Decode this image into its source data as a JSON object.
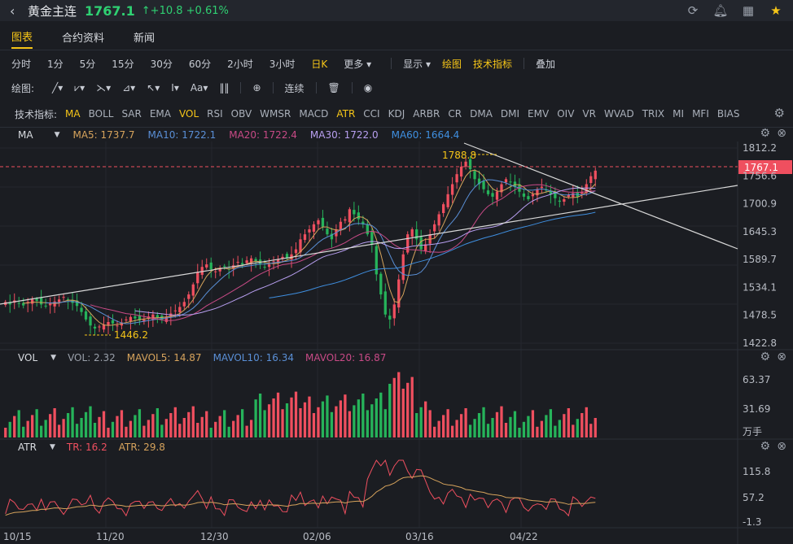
{
  "header": {
    "back_icon": "chevron-left-icon",
    "title": "黄金主连",
    "price": "1767.1",
    "arrow": "↑",
    "change": "+10.8",
    "change_pct": "+0.61%"
  },
  "tabs": [
    "图表",
    "合约资料",
    "新闻"
  ],
  "periods": [
    "分时",
    "1分",
    "5分",
    "15分",
    "30分",
    "60分",
    "2小时",
    "3小时",
    "日K",
    "更多"
  ],
  "toolbar": {
    "display": "显示",
    "draw": "绘图",
    "tech": "技术指标",
    "overlay": "叠加"
  },
  "draw_bar": {
    "label": "绘图:",
    "connect": "连续"
  },
  "indicators": {
    "label": "技术指标:",
    "items": [
      "MA",
      "BOLL",
      "SAR",
      "EMA",
      "VOL",
      "RSI",
      "OBV",
      "WMSR",
      "MACD",
      "ATR",
      "CCI",
      "KDJ",
      "ARBR",
      "CR",
      "DMA",
      "DMI",
      "EMV",
      "OIV",
      "VR",
      "WVAD",
      "TRIX",
      "MI",
      "MFI",
      "BIAS"
    ],
    "active": [
      "MA",
      "VOL",
      "ATR"
    ]
  },
  "ma_legend": {
    "name": "MA",
    "ma5": "MA5: 1737.7",
    "ma10": "MA10: 1722.1",
    "ma20": "MA20: 1722.4",
    "ma30": "MA30: 1722.0",
    "ma60": "MA60: 1664.4"
  },
  "vol_legend": {
    "name": "VOL",
    "vol": "VOL: 2.32",
    "mavol5": "MAVOL5: 14.87",
    "mavol10": "MAVOL10: 16.34",
    "mavol20": "MAVOL20: 16.87"
  },
  "atr_legend": {
    "name": "ATR",
    "tr": "TR: 16.2",
    "atr": "ATR: 29.8"
  },
  "price_axis": [
    "1812.2",
    "1756.6",
    "1700.9",
    "1645.3",
    "1589.7",
    "1534.1",
    "1478.5",
    "1422.8"
  ],
  "last_price_tag": "1767.1",
  "vol_axis": [
    "63.37",
    "31.69",
    "万手"
  ],
  "atr_axis": [
    "115.8",
    "57.2",
    "-1.3"
  ],
  "annotations": {
    "high": "1788.8",
    "low": "1446.2"
  },
  "x_axis": [
    "10/15",
    "11/20",
    "12/30",
    "02/06",
    "03/16",
    "04/22"
  ],
  "colors": {
    "up": "#ef4f5f",
    "down": "#26b35a",
    "accent": "#f5c518",
    "ma5": "#d6a35c",
    "ma10": "#5a8fd6",
    "ma20": "#c84a86",
    "ma30": "#b89ff0",
    "ma60": "#3f8fe0"
  },
  "chart_data": {
    "type": "candlestick",
    "title": "",
    "ylim": [
      1422.8,
      1812.2
    ],
    "closes": [
      1505,
      1500,
      1508,
      1503,
      1498,
      1505,
      1510,
      1507,
      1500,
      1496,
      1502,
      1506,
      1510,
      1515,
      1509,
      1503,
      1497,
      1485,
      1470,
      1458,
      1452,
      1456,
      1460,
      1465,
      1462,
      1458,
      1464,
      1470,
      1475,
      1472,
      1468,
      1470,
      1476,
      1480,
      1474,
      1470,
      1475,
      1482,
      1488,
      1495,
      1505,
      1520,
      1540,
      1565,
      1575,
      1580,
      1570,
      1566,
      1572,
      1575,
      1570,
      1578,
      1585,
      1580,
      1588,
      1592,
      1586,
      1580,
      1575,
      1580,
      1586,
      1590,
      1595,
      1592,
      1600,
      1610,
      1630,
      1640,
      1650,
      1660,
      1668,
      1655,
      1640,
      1630,
      1650,
      1665,
      1670,
      1690,
      1680,
      1670,
      1660,
      1640,
      1620,
      1560,
      1520,
      1480,
      1470,
      1500,
      1550,
      1600,
      1640,
      1650,
      1630,
      1610,
      1620,
      1640,
      1660,
      1680,
      1700,
      1720,
      1740,
      1760,
      1775,
      1785,
      1770,
      1750,
      1740,
      1730,
      1720,
      1715,
      1725,
      1740,
      1750,
      1745,
      1735,
      1725,
      1715,
      1710,
      1720,
      1730,
      1735,
      1728,
      1720,
      1712,
      1705,
      1710,
      1718,
      1722,
      1715,
      1725,
      1740,
      1756,
      1767
    ]
  }
}
